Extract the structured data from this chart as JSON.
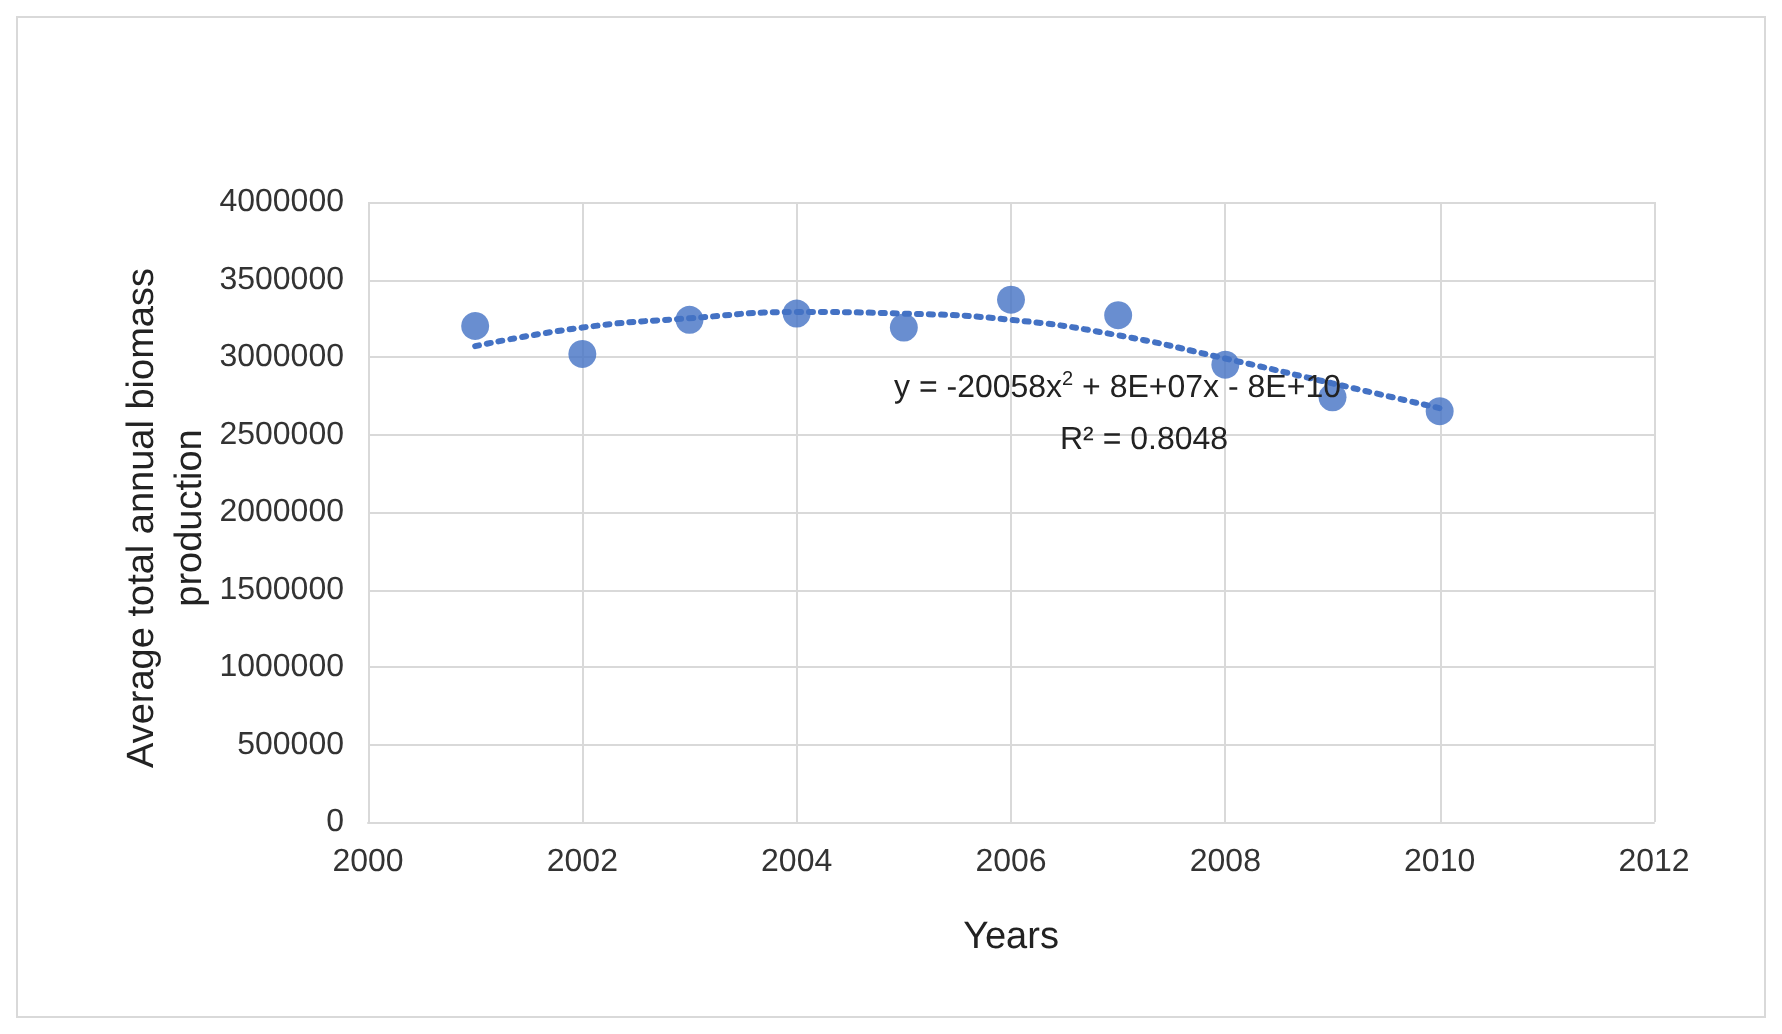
{
  "chart_data": {
    "type": "scatter",
    "xlabel": "Years",
    "ylabel": "Average total annual biomass production",
    "xlim": [
      2000,
      2012
    ],
    "xticks": [
      2000,
      2002,
      2004,
      2006,
      2008,
      2010,
      2012
    ],
    "ylim": [
      0,
      4000000
    ],
    "yticks": [
      0,
      500000,
      1000000,
      1500000,
      2000000,
      2500000,
      3000000,
      3500000,
      4000000
    ],
    "grid": true,
    "marker": "circle",
    "series": [
      {
        "color": "#4472c4",
        "x": [
          2001,
          2002,
          2003,
          2004,
          2005,
          2006,
          2007,
          2008,
          2009,
          2010
        ],
        "values": [
          3200000,
          3020000,
          3240000,
          3280000,
          3190000,
          3370000,
          3270000,
          2950000,
          2740000,
          2650000
        ]
      },
      {
        "type": "line",
        "color": "#4472c4",
        "line_style": "dotted",
        "marker": "none",
        "x": [
          2001,
          2002,
          2003,
          2004,
          2005,
          2006,
          2007,
          2008,
          2009,
          2010
        ],
        "values": [
          3070000,
          3190000,
          3250000,
          3290000,
          3280000,
          3240000,
          3140000,
          2990000,
          2830000,
          2670000
        ]
      }
    ],
    "annotations": [
      "y = -20058x$^{2}$ + 8E+07x - 8E+10",
      "R² = 0.8048"
    ]
  }
}
